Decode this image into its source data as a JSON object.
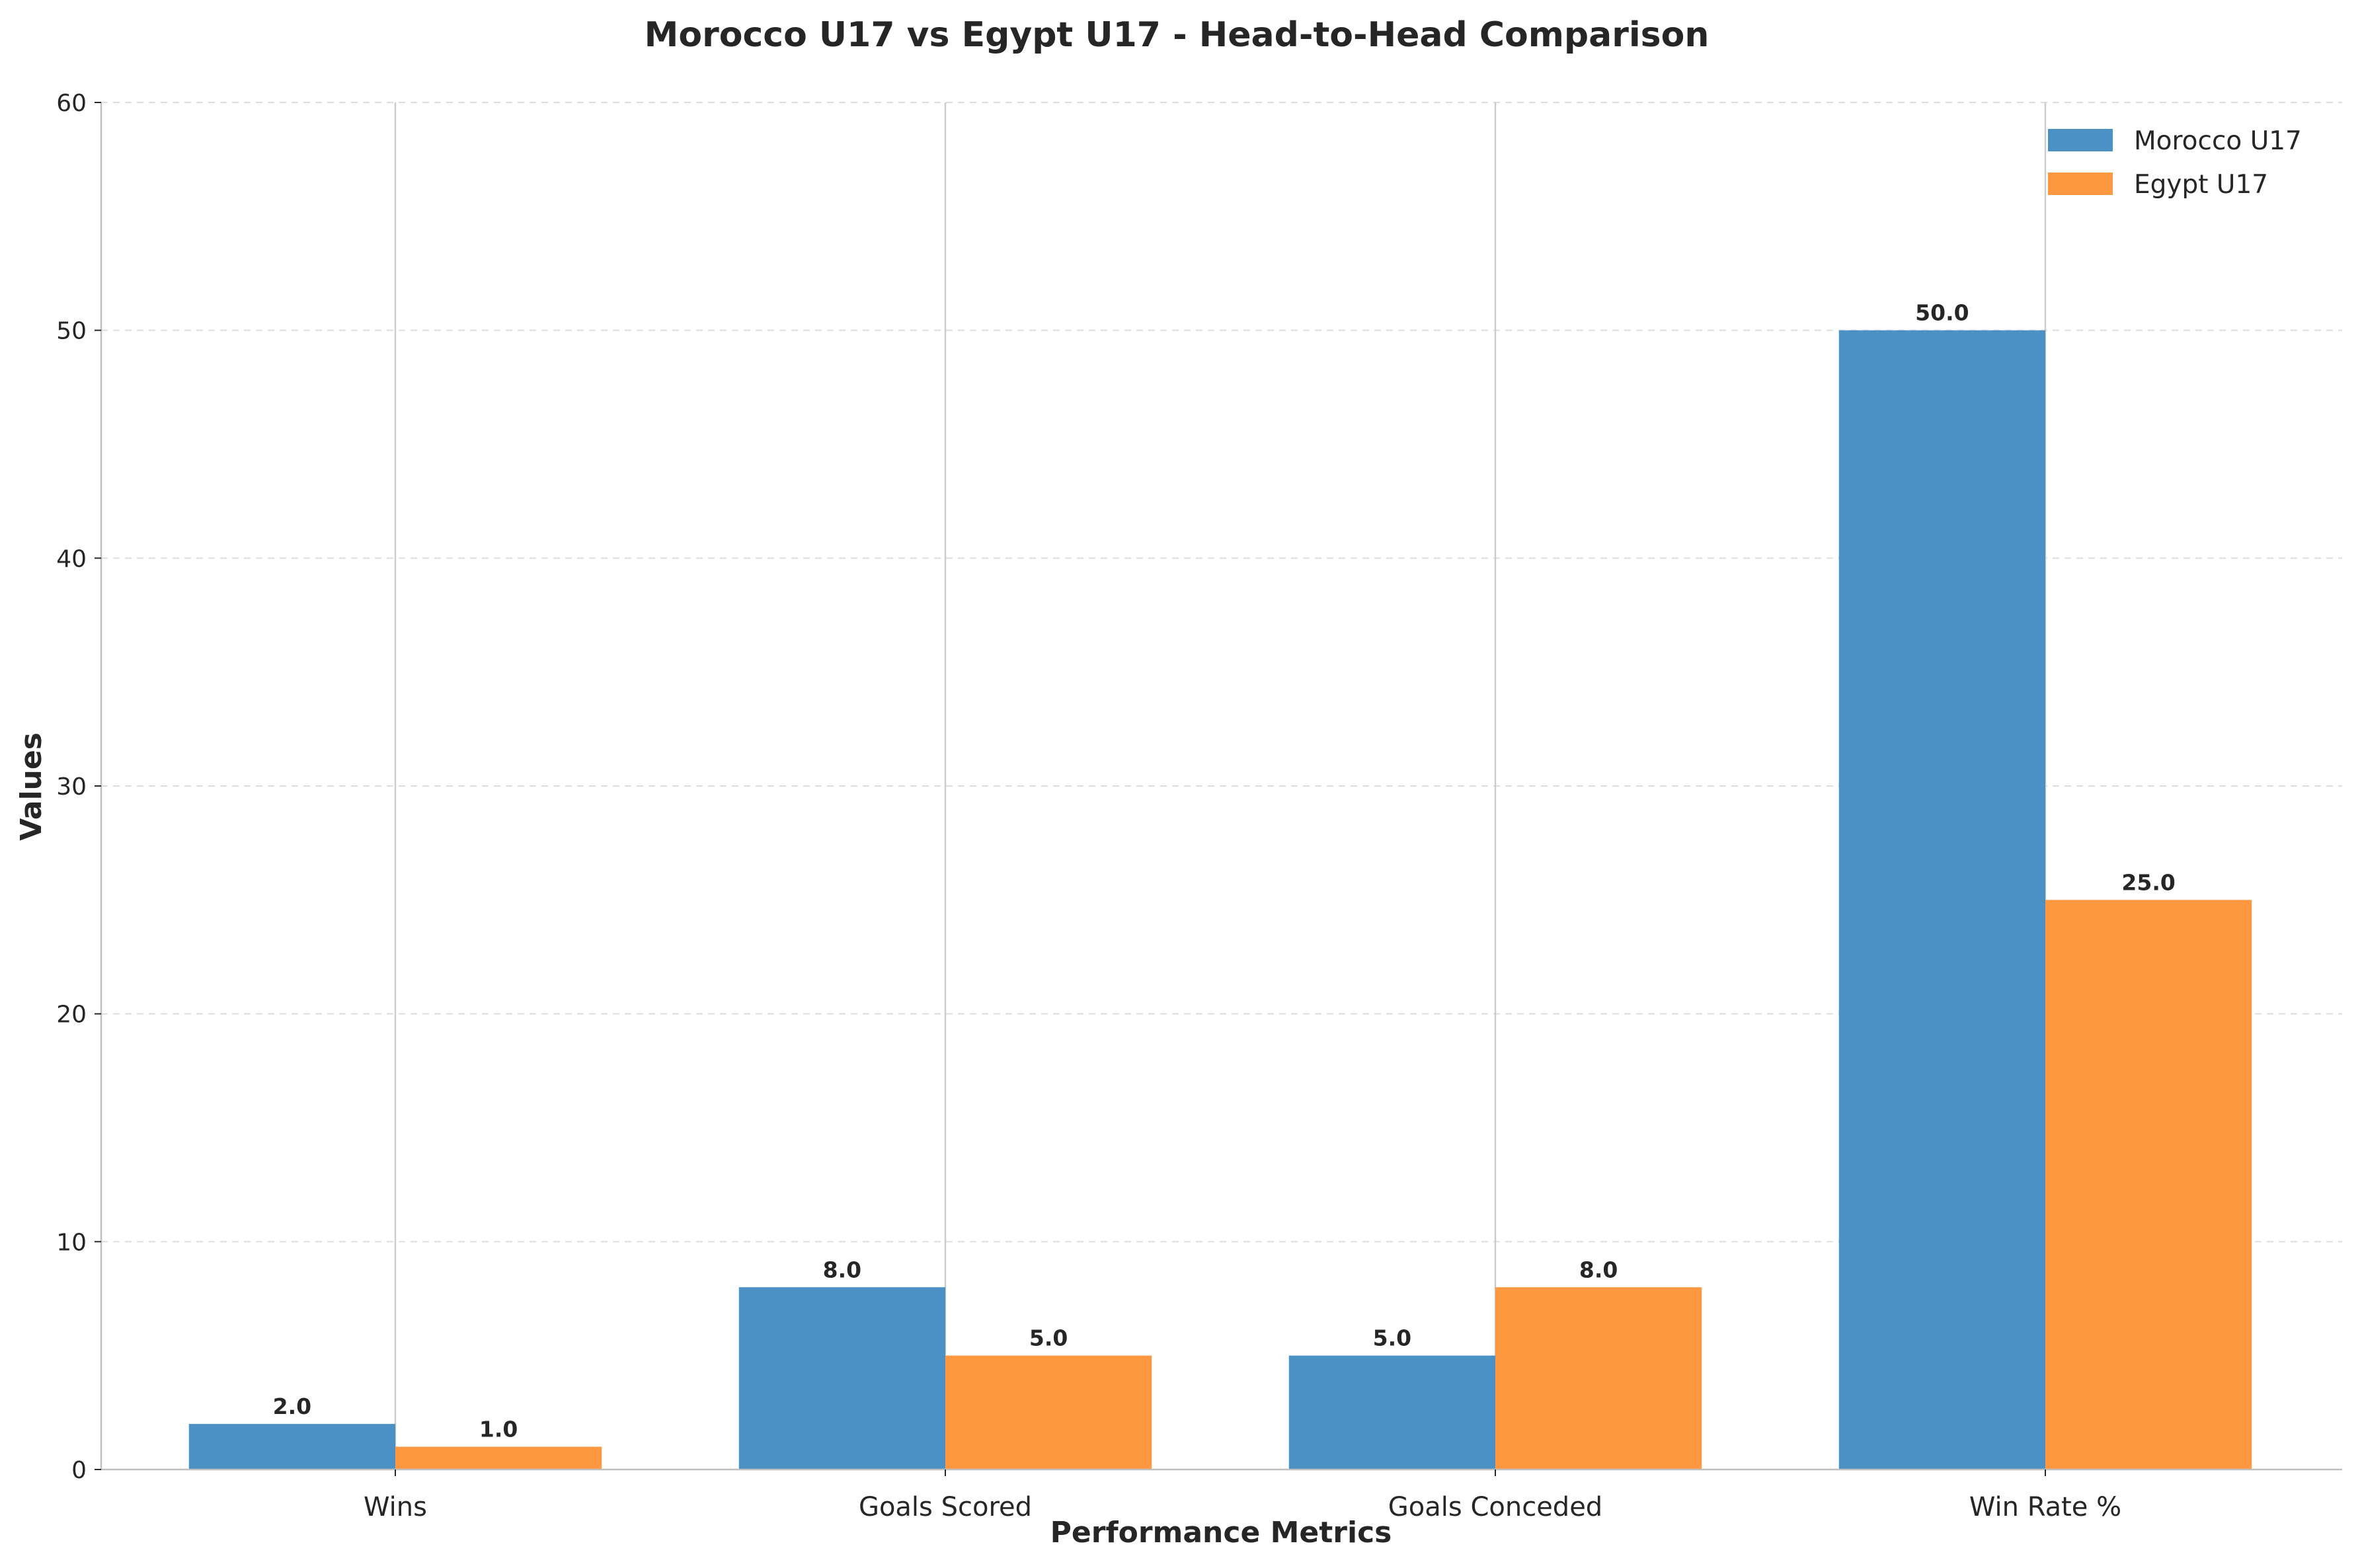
{
  "chart_data": {
    "type": "bar",
    "title": "Morocco U17 vs Egypt U17 - Head-to-Head Comparison",
    "xlabel": "Performance Metrics",
    "ylabel": "Values",
    "categories": [
      "Wins",
      "Goals Scored",
      "Goals Conceded",
      "Win Rate %"
    ],
    "series": [
      {
        "name": "Morocco U17",
        "values": [
          2.0,
          8.0,
          5.0,
          50.0
        ],
        "color": "#4b91c3",
        "labels": [
          "2.0",
          "8.0",
          "5.0",
          "50.0"
        ]
      },
      {
        "name": "Egypt U17",
        "values": [
          1.0,
          5.0,
          8.0,
          25.0
        ],
        "color": "#fe9840",
        "labels": [
          "1.0",
          "5.0",
          "8.0",
          "25.0"
        ]
      }
    ],
    "ylim": [
      0,
      60
    ],
    "yticks": [
      0,
      10,
      20,
      30,
      40,
      50,
      60
    ],
    "ytick_labels": [
      "0",
      "10",
      "20",
      "30",
      "40",
      "50",
      "60"
    ],
    "grid": true,
    "legend_position": "top-right"
  }
}
